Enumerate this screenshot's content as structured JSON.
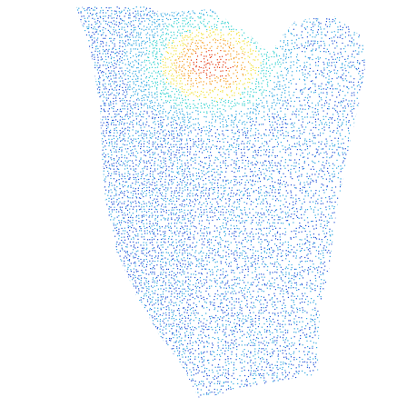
{
  "figure": {
    "description_kind": "colormapped point cloud",
    "background": "#ffffff",
    "colormap": [
      "#0a1f8f",
      "#1f4fd6",
      "#2fa6e0",
      "#34d1d0",
      "#f2e23a",
      "#f59b1f",
      "#e53a12"
    ],
    "base_color": "#1f4fd6",
    "hot_color": "#e53a12"
  }
}
